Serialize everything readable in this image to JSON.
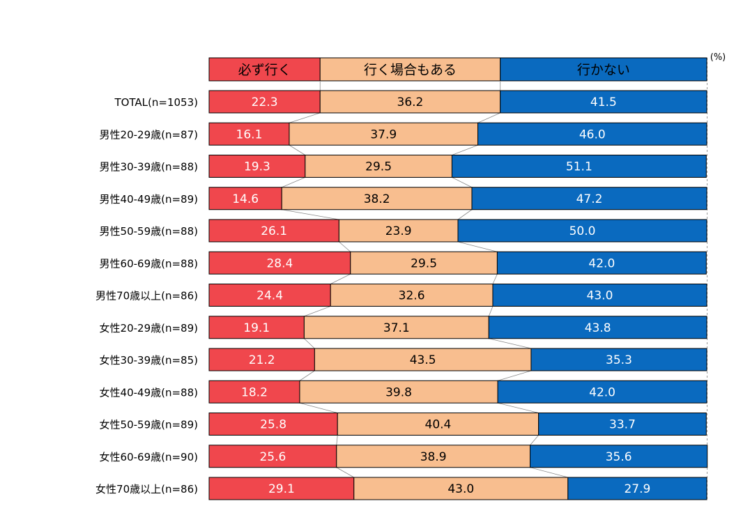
{
  "chart_data": {
    "type": "bar",
    "orientation": "horizontal",
    "stacked": "percent",
    "unit": "(%)",
    "xlim": [
      0,
      100
    ],
    "series": [
      {
        "name": "必ず行く",
        "color": "#f0474d",
        "label_color": "#ffffff",
        "values": [
          22.3,
          16.1,
          19.3,
          14.6,
          26.1,
          28.4,
          24.4,
          19.1,
          21.2,
          18.2,
          25.8,
          25.6,
          29.1
        ]
      },
      {
        "name": "行く場合もある",
        "color": "#f8be8f",
        "label_color": "#000000",
        "values": [
          36.2,
          37.9,
          29.5,
          38.2,
          23.9,
          29.5,
          32.6,
          37.1,
          43.5,
          39.8,
          40.4,
          38.9,
          43.0
        ]
      },
      {
        "name": "行かない",
        "color": "#0a6abf",
        "label_color": "#ffffff",
        "values": [
          41.5,
          46.0,
          51.1,
          47.2,
          50.0,
          42.0,
          43.0,
          43.8,
          35.3,
          42.0,
          33.7,
          35.6,
          27.9
        ]
      }
    ],
    "categories": [
      "TOTAL(n=1053)",
      "男性20-29歳(n=87)",
      "男性30-39歳(n=88)",
      "男性40-49歳(n=89)",
      "男性50-59歳(n=88)",
      "男性60-69歳(n=88)",
      "男性70歳以上(n=86)",
      "女性20-29歳(n=89)",
      "女性30-39歳(n=85)",
      "女性40-49歳(n=88)",
      "女性50-59歳(n=89)",
      "女性60-69歳(n=90)",
      "女性70歳以上(n=86)"
    ],
    "legend_position": "top",
    "connector_lines": true,
    "grid": false
  }
}
